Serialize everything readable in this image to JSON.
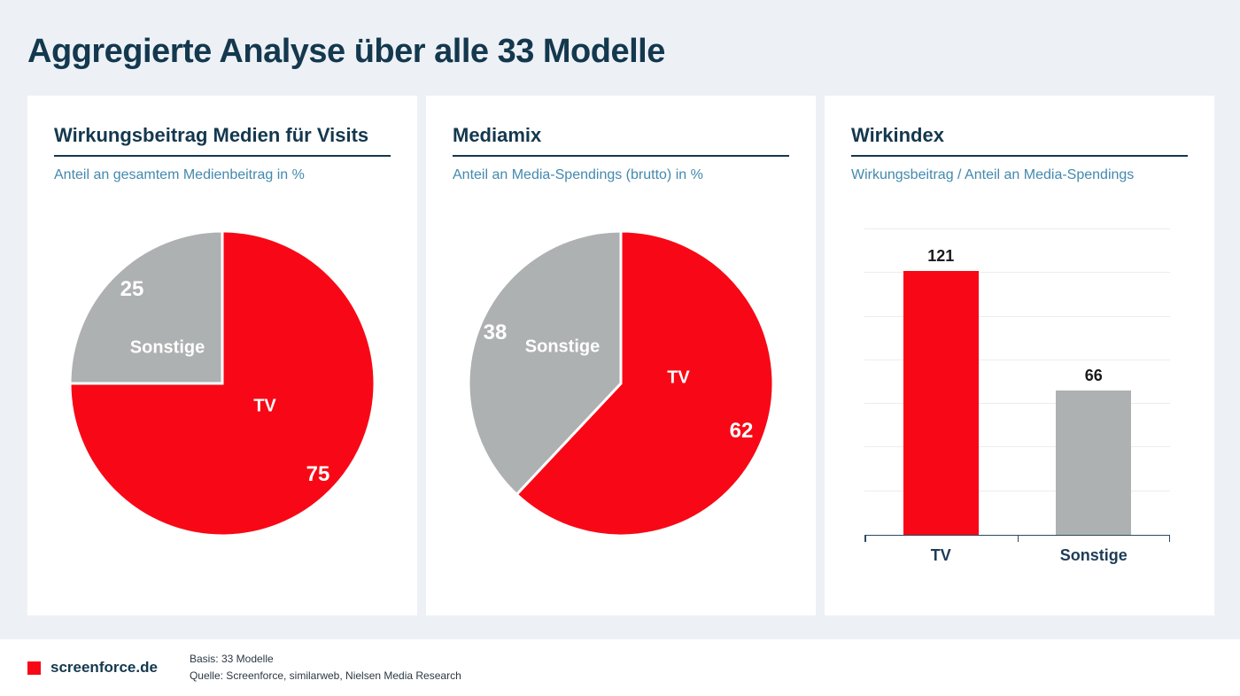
{
  "page": {
    "title": "Aggregierte Analyse über alle 33 Modelle"
  },
  "colors": {
    "red": "#F80816",
    "gray": "#AEB1B1",
    "navy": "#14384E",
    "teal": "#4389AE",
    "background": "#EDF1F6",
    "grid": "#ECECEC",
    "white": "#FFFFFF"
  },
  "chart_data": [
    {
      "type": "pie",
      "title": "Wirkungsbeitrag Medien für Visits",
      "subtitle": "Anteil an gesamtem Medienbeitrag in %",
      "start_angle": "top, clockwise",
      "slices": [
        {
          "label": "TV",
          "value": 75,
          "color": "#F80816"
        },
        {
          "label": "Sonstige",
          "value": 25,
          "color": "#AEB1B1"
        }
      ]
    },
    {
      "type": "pie",
      "title": "Mediamix",
      "subtitle": "Anteil an Media-Spendings (brutto) in %",
      "start_angle": "top, clockwise",
      "slices": [
        {
          "label": "TV",
          "value": 62,
          "color": "#F80816"
        },
        {
          "label": "Sonstige",
          "value": 38,
          "color": "#AEB1B1"
        }
      ]
    },
    {
      "type": "bar",
      "title": "Wirkindex",
      "subtitle": "Wirkungsbeitrag / Anteil an Media-Spendings",
      "categories": [
        "TV",
        "Sonstige"
      ],
      "values": [
        121,
        66
      ],
      "colors": [
        "#F80816",
        "#AEB1B1"
      ],
      "ylim": [
        0,
        140
      ],
      "grid_step": 20,
      "grid": true,
      "legend": false
    }
  ],
  "footer": {
    "brand": "screenforce.de",
    "basis": "Basis: 33 Modelle",
    "quelle": "Quelle: Screenforce, similarweb, Nielsen Media Research"
  }
}
